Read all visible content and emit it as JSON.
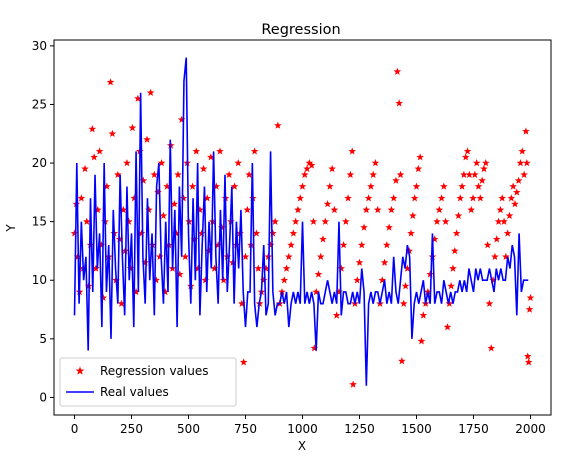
{
  "chart_data": {
    "type": "line",
    "title": "Regression",
    "xlabel": "X",
    "ylabel": "Y",
    "xlim": [
      -90,
      2090
    ],
    "ylim": [
      -1.5,
      30.5
    ],
    "xticks": [
      0,
      250,
      500,
      750,
      1000,
      1250,
      1500,
      1750,
      2000
    ],
    "yticks": [
      0,
      5,
      10,
      15,
      20,
      25,
      30
    ],
    "grid": false,
    "legend_position": "lower-left",
    "series": [
      {
        "name": "Regression values",
        "style": "scatter",
        "marker": "star",
        "color": "#ff0000",
        "points": [
          [
            0,
            14
          ],
          [
            8,
            16.5
          ],
          [
            14,
            12
          ],
          [
            22,
            9
          ],
          [
            30,
            17
          ],
          [
            38,
            11
          ],
          [
            46,
            19.5
          ],
          [
            54,
            15
          ],
          [
            62,
            9.5
          ],
          [
            70,
            13
          ],
          [
            78,
            22.9
          ],
          [
            86,
            20.5
          ],
          [
            94,
            11
          ],
          [
            102,
            16
          ],
          [
            110,
            21
          ],
          [
            118,
            13
          ],
          [
            126,
            8.5
          ],
          [
            134,
            15
          ],
          [
            142,
            18
          ],
          [
            150,
            12
          ],
          [
            158,
            26.9
          ],
          [
            166,
            22.5
          ],
          [
            174,
            14
          ],
          [
            182,
            10
          ],
          [
            190,
            19
          ],
          [
            198,
            13.5
          ],
          [
            206,
            8
          ],
          [
            214,
            16
          ],
          [
            222,
            12.5
          ],
          [
            230,
            20
          ],
          [
            238,
            15
          ],
          [
            246,
            11
          ],
          [
            254,
            23
          ],
          [
            262,
            17
          ],
          [
            270,
            9
          ],
          [
            278,
            25.5
          ],
          [
            286,
            21
          ],
          [
            294,
            14
          ],
          [
            302,
            18.5
          ],
          [
            310,
            11.5
          ],
          [
            318,
            22
          ],
          [
            326,
            16
          ],
          [
            334,
            26
          ],
          [
            342,
            13
          ],
          [
            350,
            19
          ],
          [
            358,
            10
          ],
          [
            366,
            17.5
          ],
          [
            374,
            12
          ],
          [
            382,
            20
          ],
          [
            390,
            15.5
          ],
          [
            398,
            9
          ],
          [
            406,
            18
          ],
          [
            414,
            13
          ],
          [
            422,
            21.5
          ],
          [
            430,
            11
          ],
          [
            438,
            16.5
          ],
          [
            446,
            14
          ],
          [
            454,
            19
          ],
          [
            462,
            10.5
          ],
          [
            470,
            23.7
          ],
          [
            478,
            17
          ],
          [
            486,
            12
          ],
          [
            494,
            20
          ],
          [
            502,
            15
          ],
          [
            510,
            9.5
          ],
          [
            518,
            18
          ],
          [
            526,
            13.5
          ],
          [
            534,
            21
          ],
          [
            542,
            11
          ],
          [
            550,
            16
          ],
          [
            558,
            14
          ],
          [
            566,
            19.5
          ],
          [
            574,
            10
          ],
          [
            582,
            17
          ],
          [
            590,
            12.5
          ],
          [
            598,
            20.5
          ],
          [
            606,
            15
          ],
          [
            614,
            11
          ],
          [
            622,
            18
          ],
          [
            630,
            13
          ],
          [
            638,
            21
          ],
          [
            646,
            14.5
          ],
          [
            654,
            10
          ],
          [
            662,
            17
          ],
          [
            670,
            12
          ],
          [
            678,
            19
          ],
          [
            686,
            15
          ],
          [
            694,
            11.5
          ],
          [
            702,
            18
          ],
          [
            710,
            13
          ],
          [
            718,
            20
          ],
          [
            726,
            14
          ],
          [
            734,
            8
          ],
          [
            742,
            3
          ],
          [
            750,
            12
          ],
          [
            758,
            16
          ],
          [
            766,
            19
          ],
          [
            774,
            13
          ],
          [
            782,
            17
          ],
          [
            790,
            21
          ],
          [
            798,
            14
          ],
          [
            806,
            11
          ],
          [
            812,
            8
          ],
          [
            820,
            9
          ],
          [
            830,
            10
          ],
          [
            840,
            11
          ],
          [
            850,
            12
          ],
          [
            860,
            13
          ],
          [
            870,
            14
          ],
          [
            880,
            15
          ],
          [
            892,
            23.2
          ],
          [
            900,
            8
          ],
          [
            910,
            9
          ],
          [
            920,
            10
          ],
          [
            930,
            11
          ],
          [
            940,
            12
          ],
          [
            950,
            13
          ],
          [
            960,
            14
          ],
          [
            970,
            15
          ],
          [
            980,
            16
          ],
          [
            990,
            17
          ],
          [
            1000,
            18
          ],
          [
            1010,
            19
          ],
          [
            1020,
            19.5
          ],
          [
            1030,
            20
          ],
          [
            1040,
            19.8
          ],
          [
            1048,
            15
          ],
          [
            1052,
            4.2
          ],
          [
            1060,
            9
          ],
          [
            1070,
            10.5
          ],
          [
            1080,
            12
          ],
          [
            1090,
            13.5
          ],
          [
            1100,
            15
          ],
          [
            1110,
            16.5
          ],
          [
            1120,
            18
          ],
          [
            1130,
            19.5
          ],
          [
            1140,
            16
          ],
          [
            1150,
            7
          ],
          [
            1160,
            9
          ],
          [
            1170,
            11
          ],
          [
            1180,
            13
          ],
          [
            1190,
            15
          ],
          [
            1200,
            17
          ],
          [
            1210,
            19
          ],
          [
            1218,
            21
          ],
          [
            1222,
            1.1
          ],
          [
            1230,
            8
          ],
          [
            1240,
            10
          ],
          [
            1250,
            11.5
          ],
          [
            1260,
            13
          ],
          [
            1270,
            14.5
          ],
          [
            1280,
            16
          ],
          [
            1290,
            17
          ],
          [
            1300,
            18
          ],
          [
            1310,
            19
          ],
          [
            1320,
            20
          ],
          [
            1330,
            16
          ],
          [
            1340,
            8
          ],
          [
            1350,
            10
          ],
          [
            1360,
            11.5
          ],
          [
            1370,
            13
          ],
          [
            1380,
            14.5
          ],
          [
            1390,
            16
          ],
          [
            1400,
            17
          ],
          [
            1410,
            18.5
          ],
          [
            1416,
            27.8
          ],
          [
            1424,
            25.1
          ],
          [
            1430,
            19
          ],
          [
            1436,
            3.1
          ],
          [
            1444,
            8
          ],
          [
            1452,
            9.5
          ],
          [
            1460,
            11
          ],
          [
            1468,
            12.5
          ],
          [
            1476,
            14
          ],
          [
            1484,
            15.5
          ],
          [
            1492,
            17
          ],
          [
            1500,
            18
          ],
          [
            1508,
            19.5
          ],
          [
            1516,
            20.5
          ],
          [
            1522,
            4.8
          ],
          [
            1530,
            7
          ],
          [
            1540,
            8
          ],
          [
            1550,
            9
          ],
          [
            1560,
            10.5
          ],
          [
            1570,
            12
          ],
          [
            1580,
            13.5
          ],
          [
            1590,
            15
          ],
          [
            1600,
            16
          ],
          [
            1610,
            17
          ],
          [
            1620,
            18
          ],
          [
            1628,
            15
          ],
          [
            1636,
            6
          ],
          [
            1644,
            8
          ],
          [
            1652,
            9.5
          ],
          [
            1660,
            11
          ],
          [
            1668,
            12.5
          ],
          [
            1676,
            14
          ],
          [
            1684,
            15.5
          ],
          [
            1692,
            17
          ],
          [
            1700,
            18
          ],
          [
            1708,
            19
          ],
          [
            1716,
            20.5
          ],
          [
            1724,
            21
          ],
          [
            1732,
            19
          ],
          [
            1740,
            16
          ],
          [
            1748,
            17
          ],
          [
            1756,
            19
          ],
          [
            1764,
            20
          ],
          [
            1772,
            18
          ],
          [
            1780,
            17
          ],
          [
            1788,
            18.5
          ],
          [
            1796,
            19.5
          ],
          [
            1804,
            20
          ],
          [
            1812,
            13
          ],
          [
            1820,
            8
          ],
          [
            1828,
            4.2
          ],
          [
            1836,
            10
          ],
          [
            1844,
            12
          ],
          [
            1852,
            13.5
          ],
          [
            1860,
            15
          ],
          [
            1868,
            16
          ],
          [
            1876,
            17
          ],
          [
            1884,
            15
          ],
          [
            1892,
            12
          ],
          [
            1900,
            14
          ],
          [
            1908,
            15.5
          ],
          [
            1916,
            17
          ],
          [
            1924,
            18
          ],
          [
            1932,
            16.5
          ],
          [
            1940,
            17.5
          ],
          [
            1948,
            18.5
          ],
          [
            1956,
            20
          ],
          [
            1964,
            21
          ],
          [
            1972,
            19
          ],
          [
            1980,
            22.7
          ],
          [
            1984,
            20
          ],
          [
            1988,
            3.5
          ],
          [
            1992,
            3
          ],
          [
            1996,
            7.5
          ],
          [
            2000,
            8.5
          ]
        ]
      },
      {
        "name": "Real values",
        "style": "line",
        "color": "#0000ff",
        "x_start": 0,
        "x_step": 10,
        "values": [
          7,
          20,
          8,
          15,
          10,
          12,
          4,
          17,
          9,
          19,
          11,
          14,
          6,
          20,
          9,
          13,
          5,
          16,
          11,
          8,
          19,
          12,
          7,
          18,
          10,
          14,
          6,
          21,
          9,
          26,
          12,
          8,
          17,
          10,
          14,
          7,
          18,
          20,
          12,
          8,
          15,
          9,
          22,
          11,
          16,
          6,
          18,
          12,
          27,
          29,
          14,
          8,
          17,
          10,
          20,
          7,
          13,
          18,
          9,
          15,
          11,
          21,
          12,
          8,
          16,
          10,
          19,
          9,
          13,
          18,
          8,
          15,
          11,
          16,
          9,
          6,
          9,
          9,
          20,
          8,
          6,
          8,
          9,
          13,
          7,
          8,
          21,
          9,
          7,
          8,
          8,
          9,
          8,
          9,
          6,
          8,
          9,
          8,
          9,
          8,
          15,
          8,
          9,
          8,
          9,
          8,
          4,
          9,
          8,
          8,
          9,
          10,
          9,
          8,
          9,
          8,
          15,
          7,
          9,
          9,
          8,
          8,
          9,
          8,
          9,
          8,
          11,
          9,
          1,
          8,
          9,
          8,
          9,
          9,
          8,
          9,
          10,
          8,
          9,
          8,
          12,
          9,
          8,
          10,
          12,
          11,
          13,
          12,
          5,
          8,
          9,
          8,
          9,
          10,
          8,
          9,
          8,
          14,
          8,
          9,
          9,
          8,
          10,
          9,
          8,
          9,
          8,
          9,
          9,
          10,
          9,
          10,
          9,
          11,
          10,
          9,
          11,
          10,
          11,
          10,
          10,
          10,
          11,
          10,
          9,
          11,
          10,
          11,
          10,
          10,
          12,
          11,
          13,
          12,
          7,
          14,
          9,
          10,
          10,
          10
        ]
      }
    ]
  }
}
